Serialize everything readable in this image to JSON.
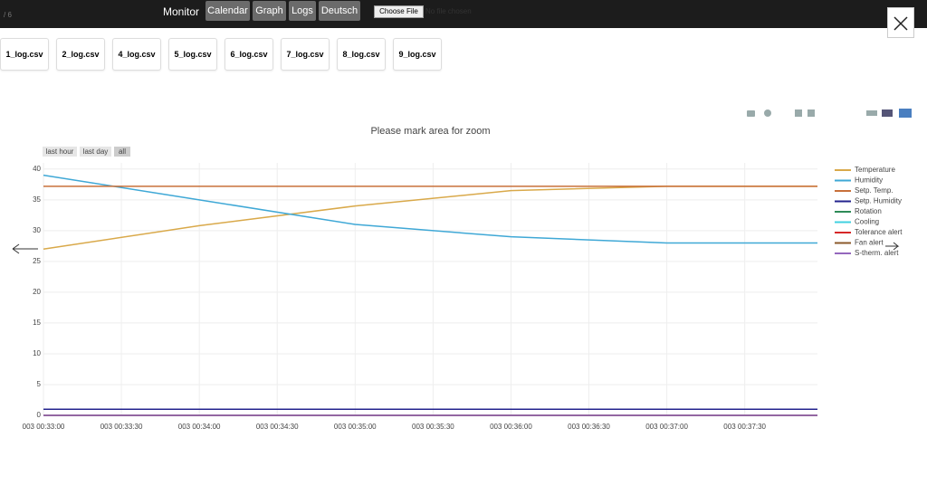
{
  "header": {
    "counter": "/ 6",
    "title": "Monitor",
    "nav": [
      "Calendar",
      "Graph",
      "Logs",
      "Deutsch"
    ],
    "file_button": "Choose File",
    "file_status": "No file chosen"
  },
  "files": [
    "1_log.csv",
    "2_log.csv",
    "4_log.csv",
    "5_log.csv",
    "6_log.csv",
    "7_log.csv",
    "8_log.csv",
    "9_log.csv"
  ],
  "chart_data": {
    "type": "line",
    "title": "Please mark area for zoom",
    "range_buttons": [
      "last hour",
      "last day",
      "all"
    ],
    "x": [
      0,
      60,
      120,
      180,
      240,
      298
    ],
    "xlim": [
      0,
      298
    ],
    "xticks": [
      {
        "value": 0,
        "label": "003 00:33:00"
      },
      {
        "value": 30,
        "label": "003 00:33:30"
      },
      {
        "value": 60,
        "label": "003 00:34:00"
      },
      {
        "value": 90,
        "label": "003 00:34:30"
      },
      {
        "value": 120,
        "label": "003 00:35:00"
      },
      {
        "value": 150,
        "label": "003 00:35:30"
      },
      {
        "value": 180,
        "label": "003 00:36:00"
      },
      {
        "value": 210,
        "label": "003 00:36:30"
      },
      {
        "value": 240,
        "label": "003 00:37:00"
      },
      {
        "value": 270,
        "label": "003 00:37:30"
      }
    ],
    "ylim": [
      0,
      41
    ],
    "yticks": [
      0,
      5,
      10,
      15,
      20,
      25,
      30,
      35,
      40
    ],
    "grid": true,
    "legend": "right",
    "series": [
      {
        "name": "Temperature",
        "color": "#d9a94a",
        "values": [
          27,
          30.8,
          34,
          36.5,
          37.2,
          37.2
        ]
      },
      {
        "name": "Humidity",
        "color": "#3fa8d6",
        "values": [
          39,
          35,
          31,
          29,
          28,
          28
        ]
      },
      {
        "name": "Setp. Temp.",
        "color": "#c8703a",
        "values": [
          37.2,
          37.2,
          37.2,
          37.2,
          37.2,
          37.2
        ]
      },
      {
        "name": "Setp. Humidity",
        "color": "#23238e",
        "values": [
          1,
          1,
          1,
          1,
          1,
          1
        ]
      },
      {
        "name": "Rotation",
        "color": "#2e8b57",
        "values": [
          0,
          0,
          0,
          0,
          0,
          0
        ]
      },
      {
        "name": "Cooling",
        "color": "#40d0e0",
        "values": [
          0,
          0,
          0,
          0,
          0,
          0
        ]
      },
      {
        "name": "Tolerance alert",
        "color": "#d62728",
        "values": [
          0,
          0,
          0,
          0,
          0,
          0
        ]
      },
      {
        "name": "Fan alert",
        "color": "#8b5a2b",
        "values": [
          0,
          0,
          0,
          0,
          0,
          0
        ]
      },
      {
        "name": "S-therm. alert",
        "color": "#9467bd",
        "values": [
          0,
          0,
          0,
          0,
          0,
          0
        ]
      }
    ]
  }
}
